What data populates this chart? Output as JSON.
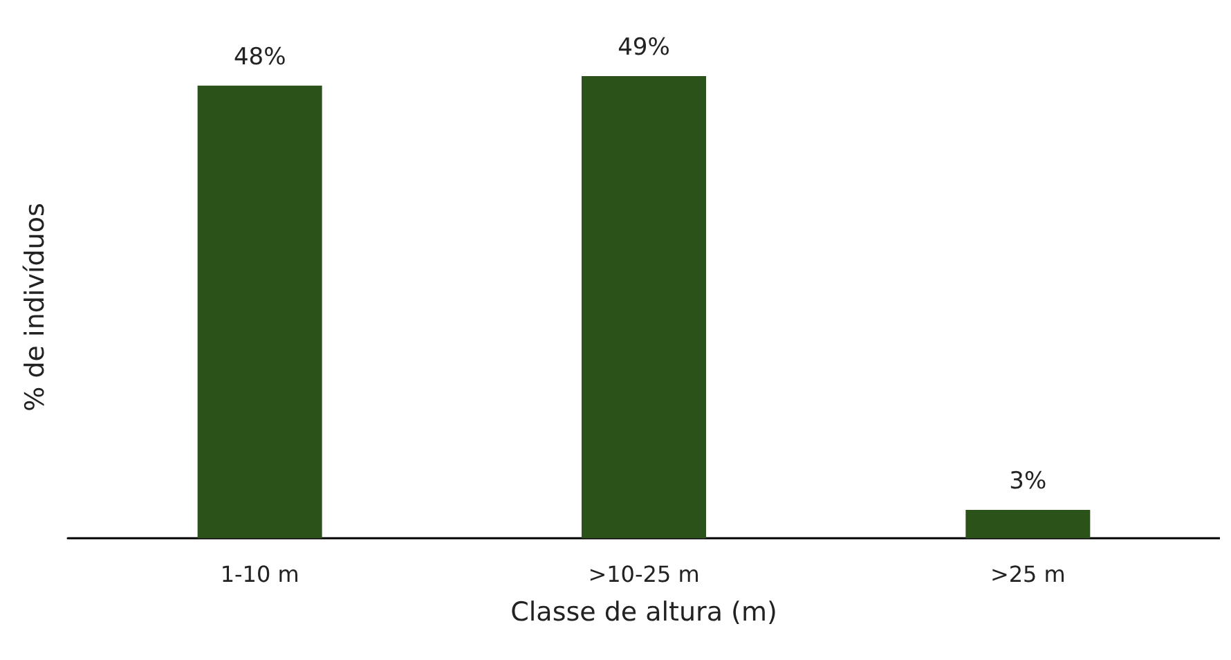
{
  "chart_data": {
    "type": "bar",
    "categories": [
      "1-10 m",
      ">10-25 m",
      ">25 m"
    ],
    "values": [
      48,
      49,
      3
    ],
    "value_labels": [
      "48%",
      "49%",
      "3%"
    ],
    "color": "#2b5219",
    "xlabel": "Classe de altura (m)",
    "ylabel": "% de indivíduos",
    "tick_labels": "x"
  }
}
